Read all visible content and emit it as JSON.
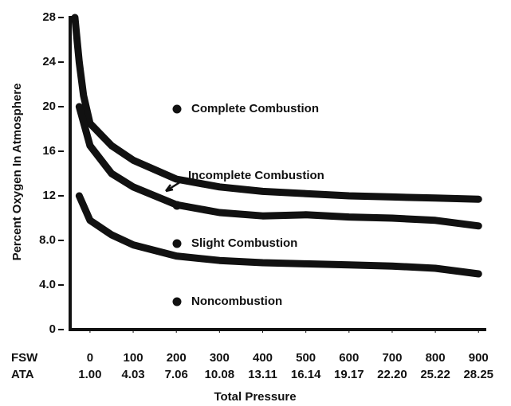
{
  "chart_data": {
    "type": "line",
    "ylabel": "Percent Oxygen In Atmosphere",
    "xlabel": "Total Pressure",
    "x_row_label": "FSW",
    "x2_row_label": "ATA",
    "xlim": [
      -46,
      918
    ],
    "xticks": [
      0,
      100,
      200,
      300,
      400,
      500,
      600,
      700,
      800,
      900
    ],
    "x2_tick_labels": [
      "1.00",
      "4.03",
      "7.06",
      "10.08",
      "13.11",
      "16.14",
      "19.17",
      "22.20",
      "25.22",
      "28.25"
    ],
    "ylim": [
      0,
      28
    ],
    "yticks": [
      0,
      {
        "value": 4,
        "label": "4.0"
      },
      {
        "value": 8,
        "label": "8.0"
      },
      12,
      16,
      20,
      24,
      28
    ],
    "series": [
      {
        "color": "#111111",
        "x": [
          -35,
          -25,
          -15,
          0,
          50,
          100,
          200,
          300,
          400,
          500,
          600,
          700,
          800,
          900
        ],
        "values": [
          28,
          24,
          21,
          18.5,
          16.5,
          15.2,
          13.5,
          12.8,
          12.4,
          12.2,
          12,
          11.9,
          11.8,
          11.7
        ]
      },
      {
        "color": "#111111",
        "x": [
          -25,
          0,
          50,
          100,
          200,
          300,
          400,
          500,
          600,
          700,
          800,
          900
        ],
        "values": [
          20,
          16.5,
          14,
          12.8,
          11.2,
          10.5,
          10.2,
          10.3,
          10.1,
          10,
          9.8,
          9.3
        ]
      },
      {
        "color": "#111111",
        "x": [
          -25,
          0,
          50,
          100,
          200,
          300,
          400,
          500,
          600,
          700,
          800,
          900
        ],
        "values": [
          12,
          9.8,
          8.5,
          7.6,
          6.6,
          6.2,
          6.0,
          5.9,
          5.8,
          5.7,
          5.5,
          5.0
        ]
      }
    ],
    "annotations": [
      "Complete Combustion",
      "Incomplete Combustion",
      "Slight Combustion",
      "Noncombustion"
    ]
  }
}
